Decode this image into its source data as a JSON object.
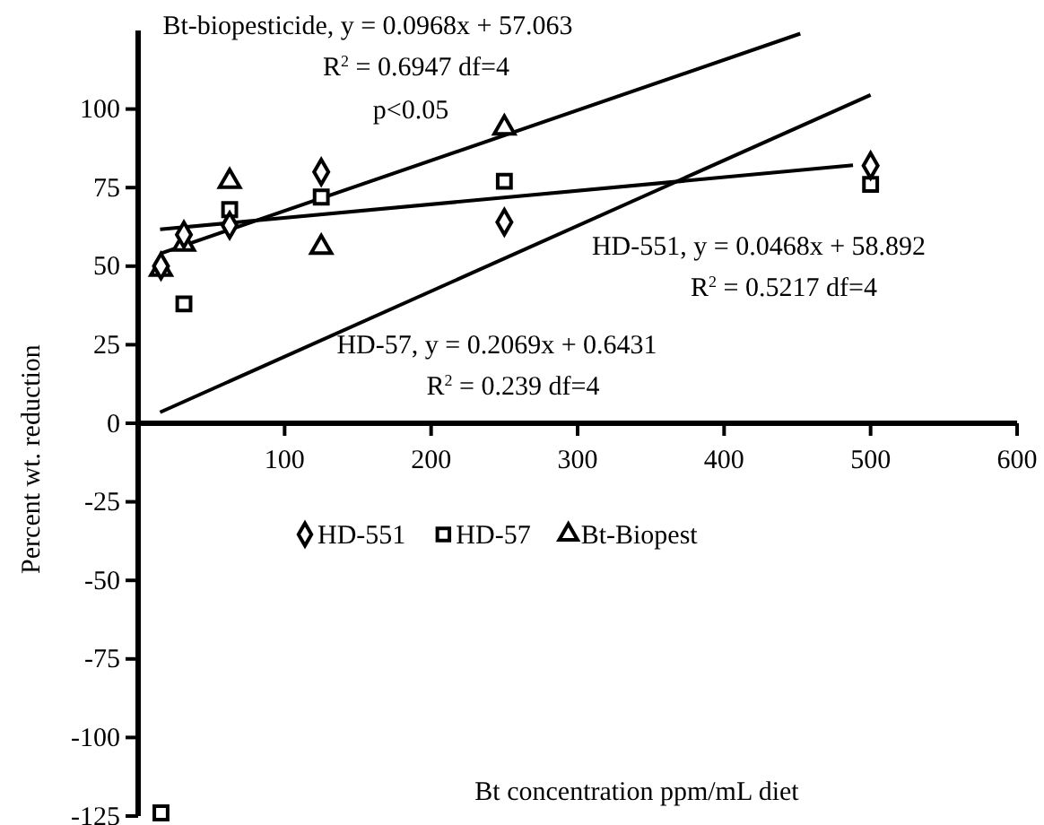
{
  "chart_data": {
    "type": "scatter",
    "xlabel": "Bt concentration ppm/mL diet",
    "ylabel": "Percent wt. reduction",
    "xlim": [
      0,
      600
    ],
    "xticks": [
      {
        "value": 0,
        "label": null
      },
      100,
      200,
      300,
      400,
      500,
      600
    ],
    "ylim": [
      -125,
      125
    ],
    "yticks": [
      -125,
      -100,
      -75,
      -50,
      -25,
      0,
      25,
      50,
      75,
      100
    ],
    "legend": "center",
    "grid": false,
    "series": [
      {
        "name": "HD-551",
        "color": "#000000",
        "marker": "diamond",
        "x": [
          15.6,
          31.25,
          62.5,
          125,
          250,
          500
        ],
        "values": [
          50,
          60,
          63,
          80,
          64,
          82
        ]
      },
      {
        "name": "HD-57",
        "color": "#000000",
        "marker": "square",
        "x": [
          15.6,
          31.25,
          62.5,
          125,
          250,
          500
        ],
        "values": [
          -124,
          38,
          68,
          72,
          77,
          76
        ]
      },
      {
        "name": "Bt-Biopest",
        "color": "#000000",
        "marker": "triangle",
        "x": [
          15.6,
          31.25,
          62.5,
          125,
          250
        ],
        "values": [
          49,
          57,
          77,
          56,
          94
        ]
      },
      {
        "type": "line",
        "color": "#000000",
        "x": [
          15,
          452
        ],
        "values": [
          54,
          124
        ]
      },
      {
        "type": "line",
        "color": "#000000",
        "x": [
          15,
          488
        ],
        "values": [
          61.7,
          82.1
        ]
      },
      {
        "type": "line",
        "color": "#000000",
        "x": [
          15,
          500
        ],
        "values": [
          3.5,
          104.5
        ]
      }
    ],
    "annotations": [
      "Bt-biopesticide, y = 0.0968x + 57.063",
      "R$^{2}$ = 0.6947 df=4",
      "p<0.05",
      "HD-551, y = 0.0468x + 58.892",
      "R$^{2}$ = 0.5217 df=4",
      "HD-57, y = 0.2069x + 0.6431",
      "R$^{2}$ = 0.239 df=4"
    ]
  }
}
